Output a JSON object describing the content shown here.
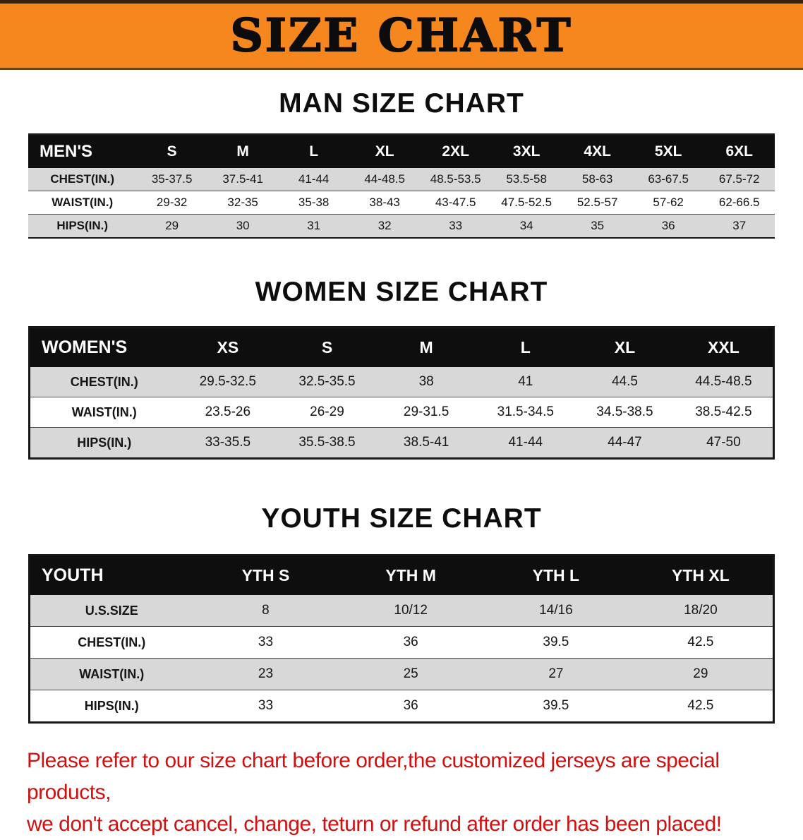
{
  "banner": {
    "title": "SIZE CHART",
    "bg_color": "#f6871f",
    "text_color": "#0c0c0c"
  },
  "sections": [
    {
      "heading": "MAN SIZE CHART",
      "table": {
        "header": [
          "MEN'S",
          "S",
          "M",
          "L",
          "XL",
          "2XL",
          "3XL",
          "4XL",
          "5XL",
          "6XL"
        ],
        "rows": [
          {
            "label": "CHEST(IN.)",
            "values": [
              "35-37.5",
              "37.5-41",
              "41-44",
              "44-48.5",
              "48.5-53.5",
              "53.5-58",
              "58-63",
              "63-67.5",
              "67.5-72"
            ]
          },
          {
            "label": "WAIST(IN.)",
            "values": [
              "29-32",
              "32-35",
              "35-38",
              "38-43",
              "43-47.5",
              "47.5-52.5",
              "52.5-57",
              "57-62",
              "62-66.5"
            ]
          },
          {
            "label": "HIPS(IN.)",
            "values": [
              "29",
              "30",
              "31",
              "32",
              "33",
              "34",
              "35",
              "36",
              "37"
            ]
          }
        ]
      }
    },
    {
      "heading": "WOMEN SIZE CHART",
      "table": {
        "header": [
          "WOMEN'S",
          "XS",
          "S",
          "M",
          "L",
          "XL",
          "XXL"
        ],
        "rows": [
          {
            "label": "CHEST(IN.)",
            "values": [
              "29.5-32.5",
              "32.5-35.5",
              "38",
              "41",
              "44.5",
              "44.5-48.5"
            ]
          },
          {
            "label": "WAIST(IN.)",
            "values": [
              "23.5-26",
              "26-29",
              "29-31.5",
              "31.5-34.5",
              "34.5-38.5",
              "38.5-42.5"
            ]
          },
          {
            "label": "HIPS(IN.)",
            "values": [
              "33-35.5",
              "35.5-38.5",
              "38.5-41",
              "41-44",
              "44-47",
              "47-50"
            ]
          }
        ]
      }
    },
    {
      "heading": "YOUTH SIZE CHART",
      "table": {
        "header": [
          "YOUTH",
          "YTH S",
          "YTH M",
          "YTH L",
          "YTH XL"
        ],
        "rows": [
          {
            "label": "U.S.SIZE",
            "values": [
              "8",
              "10/12",
              "14/16",
              "18/20"
            ]
          },
          {
            "label": "CHEST(IN.)",
            "values": [
              "33",
              "36",
              "39.5",
              "42.5"
            ]
          },
          {
            "label": "WAIST(IN.)",
            "values": [
              "23",
              "25",
              "27",
              "29"
            ]
          },
          {
            "label": "HIPS(IN.)",
            "values": [
              "33",
              "36",
              "39.5",
              "42.5"
            ]
          }
        ]
      }
    }
  ],
  "disclaimer": {
    "line1": "Please refer to our size chart before order,the customized jerseys are special products,",
    "line2": "we don't accept cancel, change, teturn or refund after order has been placed!",
    "text_color": "#cf1111"
  },
  "colors": {
    "header_row_bg": "#0e0e0e",
    "stripe_row_bg": "#d8d8d8",
    "banner_orange": "#f6871f"
  }
}
